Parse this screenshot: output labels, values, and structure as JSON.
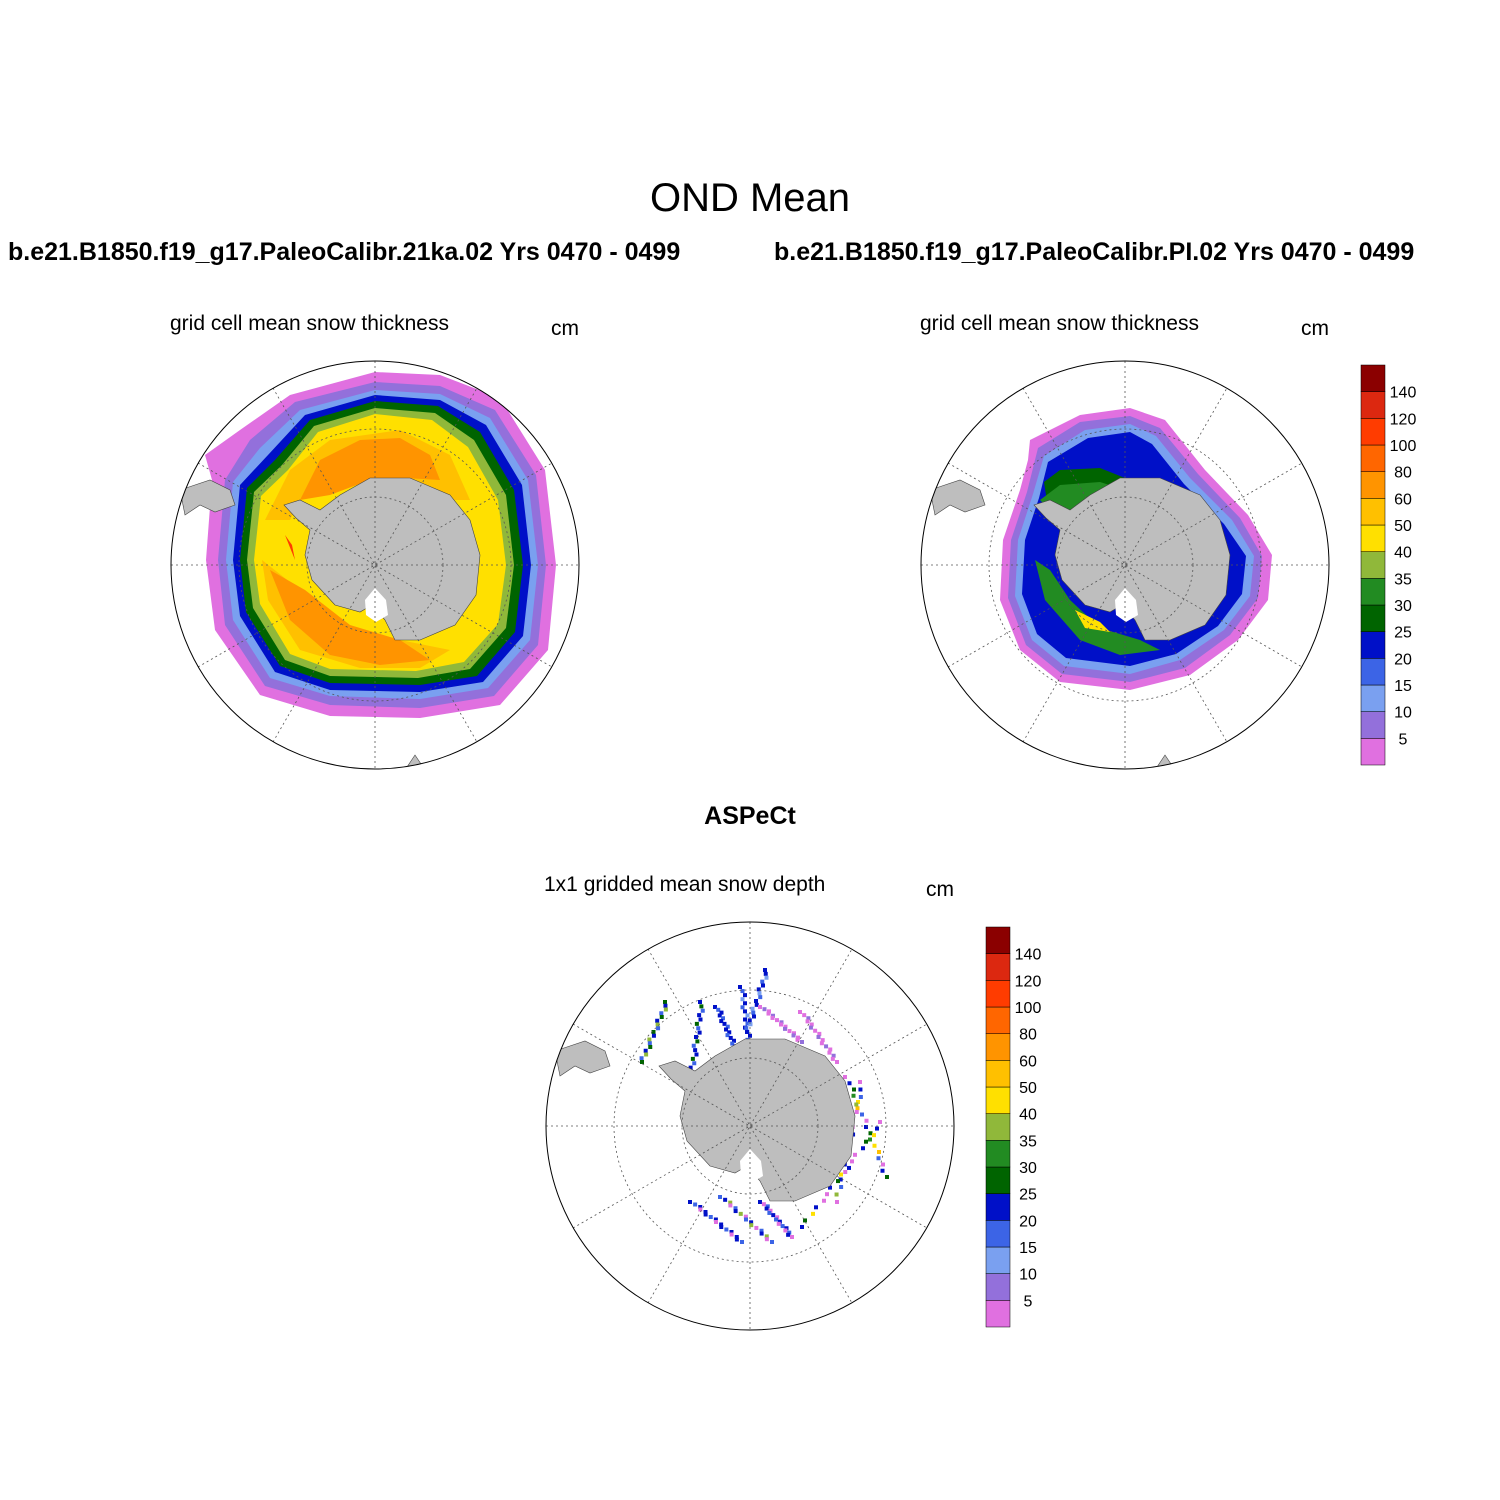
{
  "main_title": "OND Mean",
  "panels": [
    {
      "case_title": "b.e21.B1850.f19_g17.PaleoCalibr.21ka.02  Yrs 0470 - 0499",
      "field_title": "grid cell mean snow thickness",
      "unit": "cm"
    },
    {
      "case_title": "b.e21.B1850.f19_g17.PaleoCalibr.PI.02  Yrs 0470 - 0499",
      "field_title": "grid cell mean snow thickness",
      "unit": "cm"
    },
    {
      "case_title": "ASPeCt",
      "field_title": "1x1 gridded mean snow depth",
      "unit": "cm"
    }
  ],
  "colorbar": {
    "levels": [
      "5",
      "10",
      "15",
      "20",
      "25",
      "30",
      "35",
      "40",
      "50",
      "60",
      "80",
      "100",
      "120",
      "140"
    ],
    "colors": [
      "#e070e0",
      "#9370db",
      "#7aa0f0",
      "#3c64e6",
      "#0010c8",
      "#006400",
      "#228b22",
      "#90b83a",
      "#ffe000",
      "#ffc000",
      "#ff9400",
      "#ff6600",
      "#ff3c00",
      "#dc2810",
      "#8b0000"
    ]
  },
  "map": {
    "land_color": "#bebebe",
    "projection": "south polar stereographic"
  }
}
